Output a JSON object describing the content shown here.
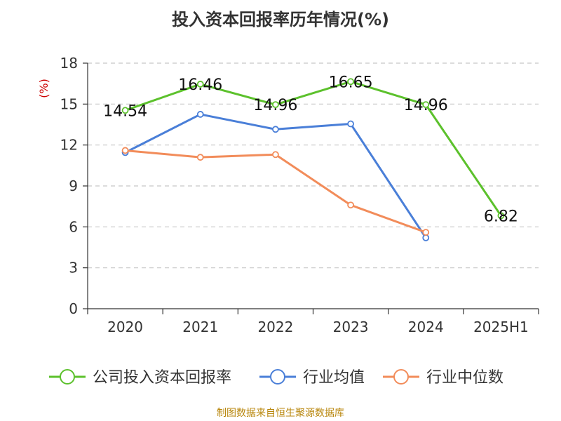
{
  "chart_data": {
    "type": "line",
    "title": "投入资本回报率历年情况(%)",
    "y_unit": "(%)",
    "categories": [
      "2020",
      "2021",
      "2022",
      "2023",
      "2024",
      "2025H1"
    ],
    "ylim": [
      0,
      18
    ],
    "yticks": [
      0,
      3,
      6,
      9,
      12,
      15,
      18
    ],
    "grid": true,
    "legend_position": "bottom",
    "series": [
      {
        "name": "公司投入资本回报率",
        "color": "#5cc12c",
        "values": [
          14.54,
          16.46,
          14.96,
          16.65,
          14.96,
          6.82
        ],
        "labels": [
          "14.54",
          "16.46",
          "14.96",
          "16.65",
          "14.96",
          "6.82"
        ]
      },
      {
        "name": "行业均值",
        "color": "#4a7fd8",
        "values": [
          11.45,
          14.25,
          13.15,
          13.55,
          5.2,
          null
        ]
      },
      {
        "name": "行业中位数",
        "color": "#f28c5a",
        "values": [
          11.6,
          11.1,
          11.3,
          7.6,
          5.6,
          null
        ]
      }
    ]
  },
  "footer": {
    "source": "制图数据来自恒生聚源数据库"
  }
}
